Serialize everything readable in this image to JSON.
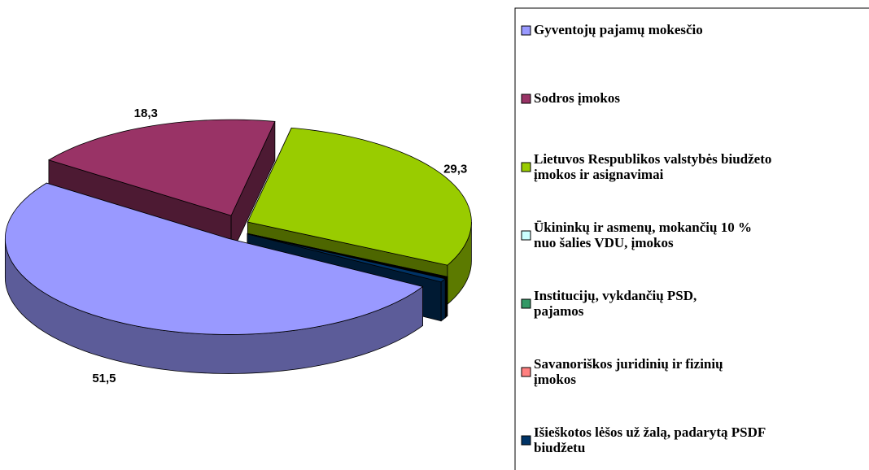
{
  "chart_data": {
    "type": "pie3d",
    "categories": [
      "Gyventojų pajamų mokesčio",
      "Sodros įmokos",
      "Lietuvos Respublikos valstybės biudžeto\nįmokos ir asignavimai",
      "Ūkininkų ir asmenų, mokančių 10 %\nnuo šalies VDU, įmokos",
      "Institucijų, vykdančių PSD,\npajamos",
      "Savanoriškos juridinių ir fizinių\nįmokos",
      "Išieškotos lėšos už žalą, padarytą PSDF\nbiudžetu"
    ],
    "values": [
      51.5,
      18.3,
      29.3,
      0.1,
      0.1,
      0.1,
      0.6
    ],
    "value_labels": [
      "51,5",
      "18,3",
      "29,3",
      null,
      null,
      null,
      null
    ],
    "colors": [
      "#9999ff",
      "#993366",
      "#99cc00",
      "#ccffff",
      "#339966",
      "#ff8080",
      "#003366"
    ],
    "legend": "right"
  }
}
